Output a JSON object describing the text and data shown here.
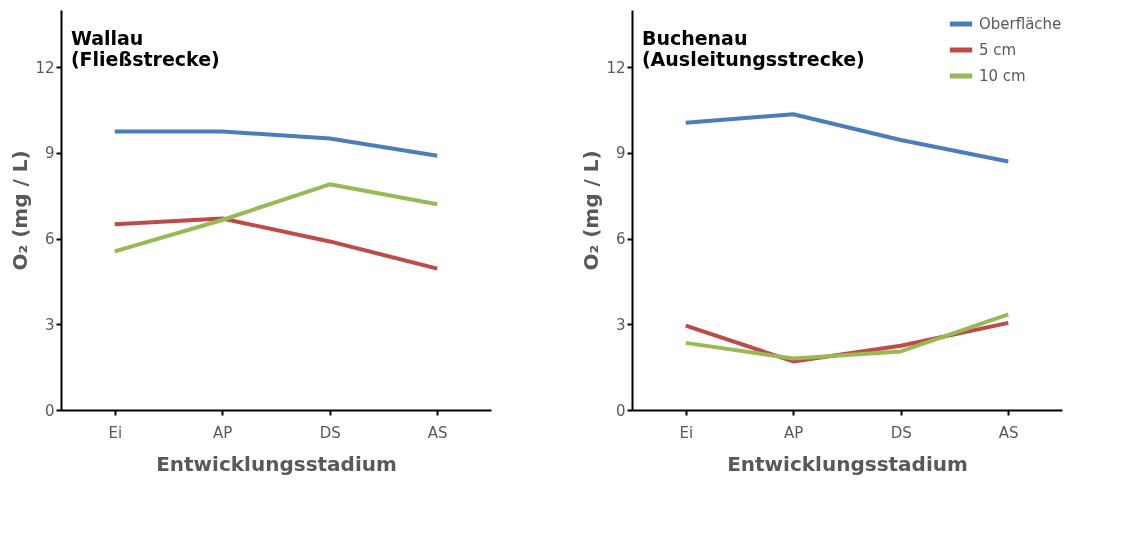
{
  "chart_data": [
    {
      "type": "line",
      "title": "Wallau\n(Fließstrecke)",
      "xlabel": "Entwicklungsstadium",
      "ylabel": "O₂ (mg / L)",
      "categories": [
        "Ei",
        "AP",
        "DS",
        "AS"
      ],
      "ylim": [
        0,
        14
      ],
      "yticks": [
        0,
        3,
        6,
        9,
        12
      ],
      "grid": false,
      "legend": false,
      "marker": "none",
      "line_style": "solid",
      "series": [
        {
          "color": "#4a7ebb",
          "values": [
            9.75,
            9.75,
            9.5,
            8.9
          ]
        },
        {
          "color": "#be4b48",
          "values": [
            6.5,
            6.7,
            5.9,
            4.95
          ]
        },
        {
          "color": "#98b954",
          "values": [
            5.55,
            6.65,
            7.9,
            7.2
          ]
        }
      ]
    },
    {
      "type": "line",
      "title": "Buchenau\n(Ausleitungsstrecke)",
      "xlabel": "Entwicklungsstadium",
      "ylabel": "O₂ (mg / L)",
      "categories": [
        "Ei",
        "AP",
        "DS",
        "AS"
      ],
      "ylim": [
        0,
        14
      ],
      "yticks": [
        0,
        3,
        6,
        9,
        12
      ],
      "grid": false,
      "legend": "top right",
      "marker": "none",
      "line_style": "solid",
      "series": [
        {
          "name": "Oberfläche",
          "color": "#4a7ebb",
          "values": [
            10.05,
            10.35,
            9.45,
            8.7
          ]
        },
        {
          "name": "5 cm",
          "color": "#be4b48",
          "values": [
            2.95,
            1.7,
            2.25,
            3.05
          ]
        },
        {
          "name": "10 cm",
          "color": "#98b954",
          "values": [
            2.35,
            1.8,
            2.05,
            3.35
          ]
        }
      ]
    }
  ]
}
